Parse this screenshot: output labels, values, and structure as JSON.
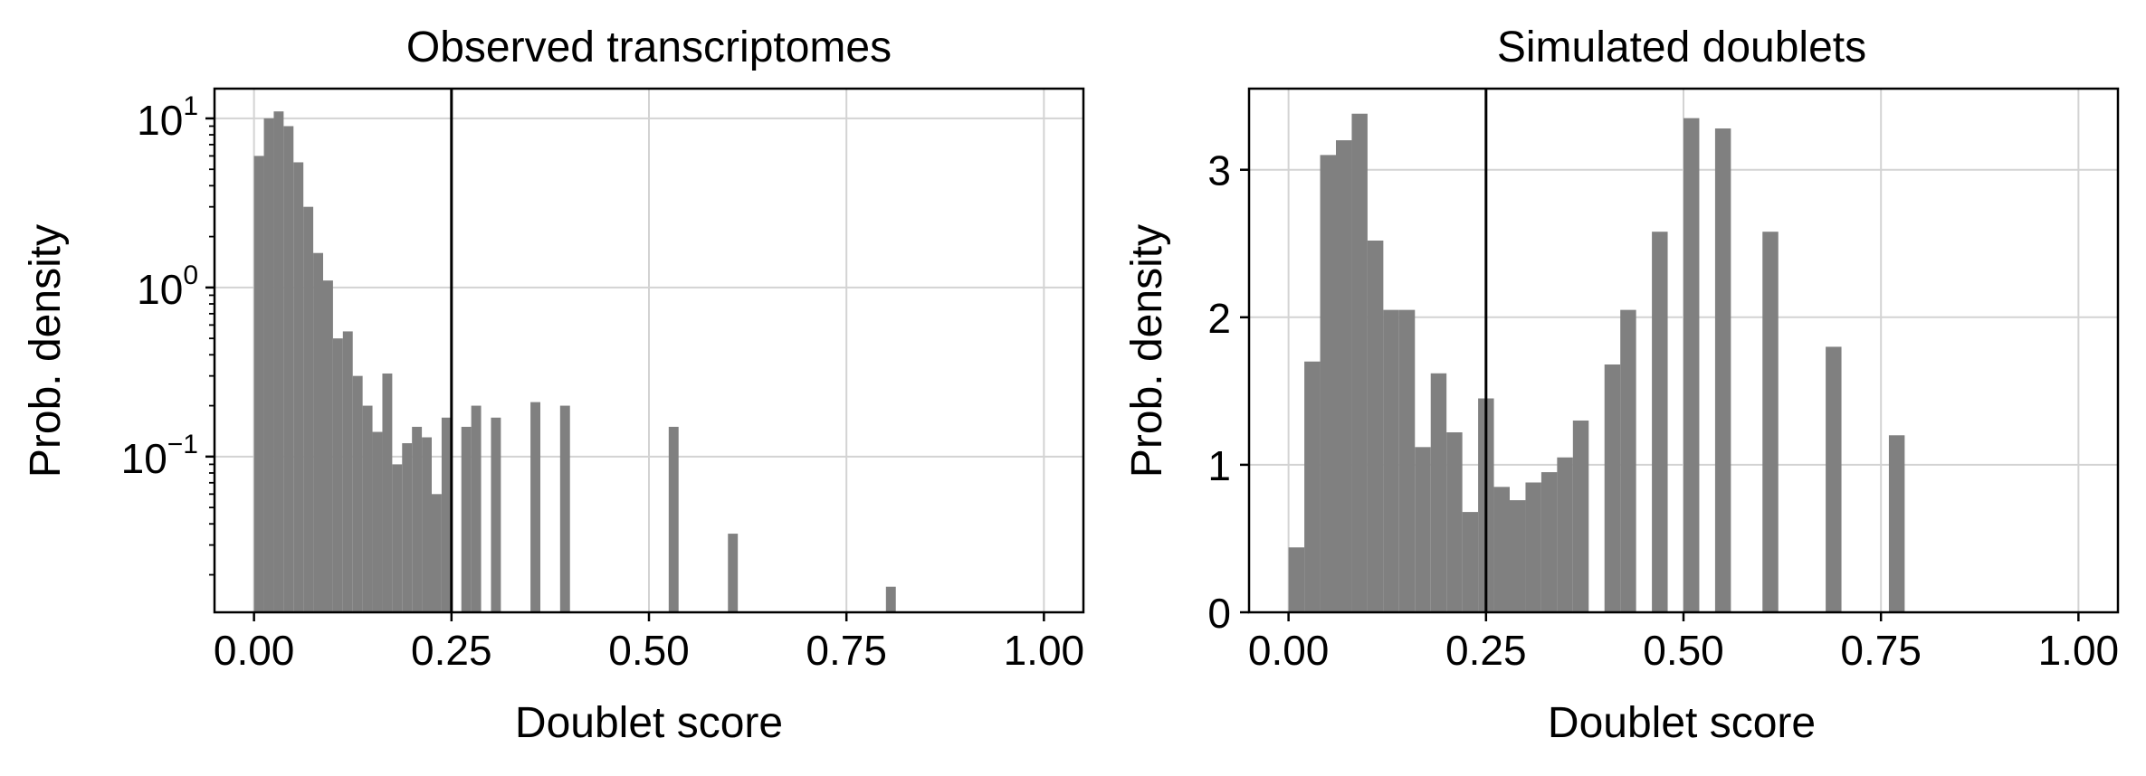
{
  "figure": {
    "background": "#ffffff",
    "bar_color": "#808080",
    "grid_color": "#d3d3d3",
    "threshold_color": "#000000"
  },
  "chart_data": [
    {
      "type": "bar",
      "title": "Observed transcriptomes",
      "xlabel": "Doublet score",
      "ylabel": "Prob. density",
      "yscale": "log",
      "xlim": [
        -0.05,
        1.05
      ],
      "ylim": [
        0.012,
        15
      ],
      "grid": true,
      "bin_width": 0.0125,
      "threshold": 0.25,
      "x_ticks": [
        {
          "value": 0.0,
          "label": "0.00"
        },
        {
          "value": 0.25,
          "label": "0.25"
        },
        {
          "value": 0.5,
          "label": "0.50"
        },
        {
          "value": 0.75,
          "label": "0.75"
        },
        {
          "value": 1.0,
          "label": "1.00"
        }
      ],
      "y_ticks": [
        {
          "value": 10,
          "base": "10",
          "exp": "1"
        },
        {
          "value": 1,
          "base": "10",
          "exp": "0"
        },
        {
          "value": 0.1,
          "base": "10",
          "exp": "−1"
        }
      ],
      "bins": [
        {
          "x": 0.0,
          "y": 6.0
        },
        {
          "x": 0.0125,
          "y": 10.0
        },
        {
          "x": 0.025,
          "y": 11.0
        },
        {
          "x": 0.0375,
          "y": 9.0
        },
        {
          "x": 0.05,
          "y": 5.5
        },
        {
          "x": 0.0625,
          "y": 3.0
        },
        {
          "x": 0.075,
          "y": 1.6
        },
        {
          "x": 0.0875,
          "y": 1.1
        },
        {
          "x": 0.1,
          "y": 0.5
        },
        {
          "x": 0.1125,
          "y": 0.55
        },
        {
          "x": 0.125,
          "y": 0.3
        },
        {
          "x": 0.1375,
          "y": 0.2
        },
        {
          "x": 0.15,
          "y": 0.14
        },
        {
          "x": 0.1625,
          "y": 0.31
        },
        {
          "x": 0.175,
          "y": 0.09
        },
        {
          "x": 0.1875,
          "y": 0.12
        },
        {
          "x": 0.2,
          "y": 0.15
        },
        {
          "x": 0.2125,
          "y": 0.13
        },
        {
          "x": 0.225,
          "y": 0.06
        },
        {
          "x": 0.2375,
          "y": 0.17
        },
        {
          "x": 0.2625,
          "y": 0.15
        },
        {
          "x": 0.275,
          "y": 0.2
        },
        {
          "x": 0.3,
          "y": 0.17
        },
        {
          "x": 0.35,
          "y": 0.21
        },
        {
          "x": 0.3875,
          "y": 0.2
        },
        {
          "x": 0.525,
          "y": 0.15
        },
        {
          "x": 0.6,
          "y": 0.035
        },
        {
          "x": 0.8,
          "y": 0.017
        }
      ]
    },
    {
      "type": "bar",
      "title": "Simulated doublets",
      "xlabel": "Doublet score",
      "ylabel": "Prob. density",
      "yscale": "linear",
      "xlim": [
        -0.05,
        1.05
      ],
      "ylim": [
        0,
        3.55
      ],
      "grid": true,
      "bin_width": 0.02,
      "threshold": 0.25,
      "x_ticks": [
        {
          "value": 0.0,
          "label": "0.00"
        },
        {
          "value": 0.25,
          "label": "0.25"
        },
        {
          "value": 0.5,
          "label": "0.50"
        },
        {
          "value": 0.75,
          "label": "0.75"
        },
        {
          "value": 1.0,
          "label": "1.00"
        }
      ],
      "y_ticks": [
        {
          "value": 0,
          "label": "0"
        },
        {
          "value": 1,
          "label": "1"
        },
        {
          "value": 2,
          "label": "2"
        },
        {
          "value": 3,
          "label": "3"
        }
      ],
      "bins": [
        {
          "x": 0.0,
          "y": 0.44
        },
        {
          "x": 0.02,
          "y": 1.7
        },
        {
          "x": 0.04,
          "y": 3.1
        },
        {
          "x": 0.06,
          "y": 3.2
        },
        {
          "x": 0.08,
          "y": 3.38
        },
        {
          "x": 0.1,
          "y": 2.52
        },
        {
          "x": 0.12,
          "y": 2.05
        },
        {
          "x": 0.14,
          "y": 2.05
        },
        {
          "x": 0.16,
          "y": 1.12
        },
        {
          "x": 0.18,
          "y": 1.62
        },
        {
          "x": 0.2,
          "y": 1.22
        },
        {
          "x": 0.22,
          "y": 0.68
        },
        {
          "x": 0.24,
          "y": 1.45
        },
        {
          "x": 0.26,
          "y": 0.85
        },
        {
          "x": 0.28,
          "y": 0.76
        },
        {
          "x": 0.3,
          "y": 0.88
        },
        {
          "x": 0.32,
          "y": 0.95
        },
        {
          "x": 0.34,
          "y": 1.05
        },
        {
          "x": 0.36,
          "y": 1.3
        },
        {
          "x": 0.4,
          "y": 1.68
        },
        {
          "x": 0.42,
          "y": 2.05
        },
        {
          "x": 0.46,
          "y": 2.58
        },
        {
          "x": 0.5,
          "y": 3.35
        },
        {
          "x": 0.54,
          "y": 3.28
        },
        {
          "x": 0.6,
          "y": 2.58
        },
        {
          "x": 0.68,
          "y": 1.8
        },
        {
          "x": 0.76,
          "y": 1.2
        }
      ]
    }
  ]
}
